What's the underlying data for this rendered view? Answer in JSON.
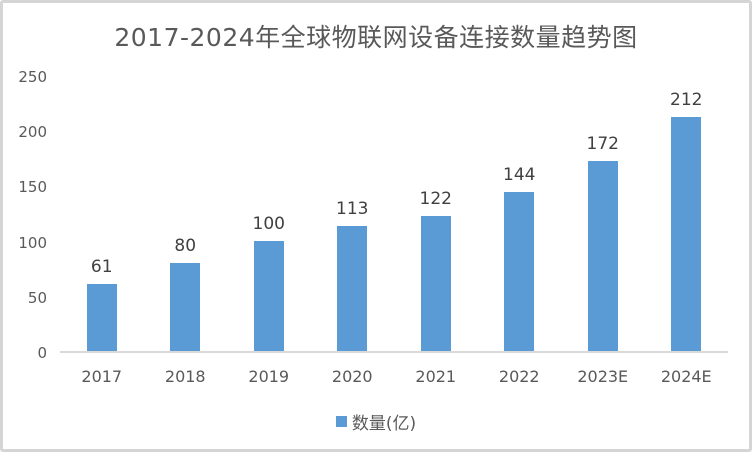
{
  "chart_data": {
    "type": "bar",
    "title": "2017-2024年全球物联网设备连接数量趋势图",
    "categories": [
      "2017",
      "2018",
      "2019",
      "2020",
      "2021",
      "2022",
      "2023E",
      "2024E"
    ],
    "series": [
      {
        "name": "数量(亿)",
        "values": [
          61,
          80,
          100,
          113,
          122,
          144,
          172,
          212
        ]
      }
    ],
    "ylim": [
      0,
      250
    ],
    "yticks": [
      0,
      50,
      100,
      150,
      200,
      250
    ],
    "grid": false,
    "data_labels": true,
    "legend_position": "bottom",
    "xlabel": "",
    "ylabel": ""
  },
  "colors": {
    "bar": "#5b9bd5",
    "title_text": "#595959",
    "axis_text": "#595959",
    "data_label_text": "#404040",
    "axis_line": "#d9d9d9",
    "frame_border": "#d5d5d5",
    "background": "#ffffff"
  },
  "legend": {
    "label": "数量(亿)"
  }
}
